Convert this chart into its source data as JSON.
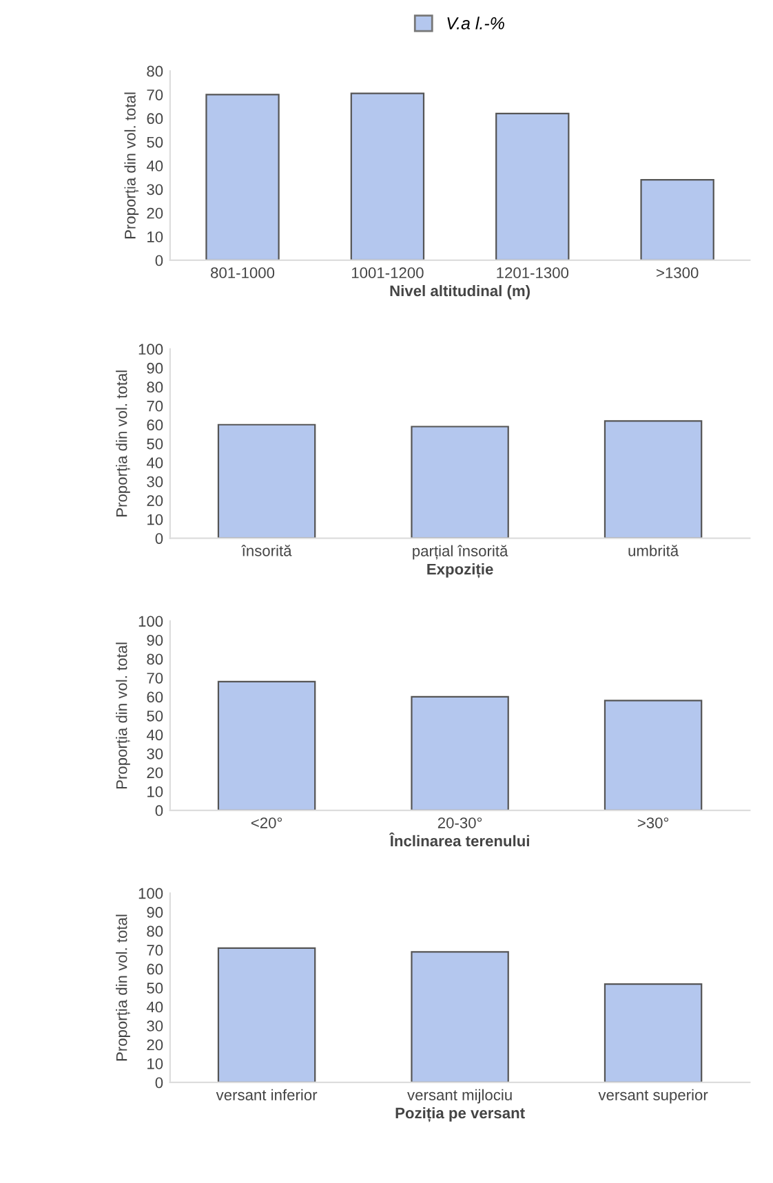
{
  "chart_data": [
    {
      "type": "bar",
      "xlabel": "Nivel altitudinal (m)",
      "ylabel": "Proporția din vol. total",
      "categories": [
        "801-1000",
        "1001-1200",
        "1201-1300",
        ">1300"
      ],
      "series": [
        {
          "name": "V.a l.-%",
          "color": "#b4c7ee",
          "values": [
            70,
            70.5,
            62,
            34
          ]
        }
      ],
      "ylim": [
        0,
        80
      ],
      "yticks": [
        0,
        10,
        20,
        30,
        40,
        50,
        60,
        70,
        80
      ],
      "legend": "top",
      "grid": false
    },
    {
      "type": "bar",
      "xlabel": "Expoziție",
      "ylabel": "Proporția din vol. total",
      "categories": [
        "însorită",
        "parțial însorită",
        "umbrită"
      ],
      "series": [
        {
          "color": "#b4c7ee",
          "values": [
            60,
            59,
            62
          ]
        }
      ],
      "ylim": [
        0,
        100
      ],
      "yticks": [
        0,
        10,
        20,
        30,
        40,
        50,
        60,
        70,
        80,
        90,
        100
      ],
      "grid": false
    },
    {
      "type": "bar",
      "xlabel": "Înclinarea terenului",
      "ylabel": "Proporția din vol. total",
      "categories": [
        "<20°",
        "20-30°",
        ">30°"
      ],
      "series": [
        {
          "color": "#b4c7ee",
          "values": [
            68,
            60,
            58
          ]
        }
      ],
      "ylim": [
        0,
        100
      ],
      "yticks": [
        0,
        10,
        20,
        30,
        40,
        50,
        60,
        70,
        80,
        90,
        100
      ],
      "grid": false
    },
    {
      "type": "bar",
      "xlabel": "Poziția pe versant",
      "ylabel": "Proporția din vol. total",
      "categories": [
        "versant inferior",
        "versant mijlociu",
        "versant superior"
      ],
      "series": [
        {
          "color": "#b4c7ee",
          "values": [
            71,
            69,
            52
          ]
        }
      ],
      "ylim": [
        0,
        100
      ],
      "yticks": [
        0,
        10,
        20,
        30,
        40,
        50,
        60,
        70,
        80,
        90,
        100
      ],
      "grid": false
    }
  ]
}
